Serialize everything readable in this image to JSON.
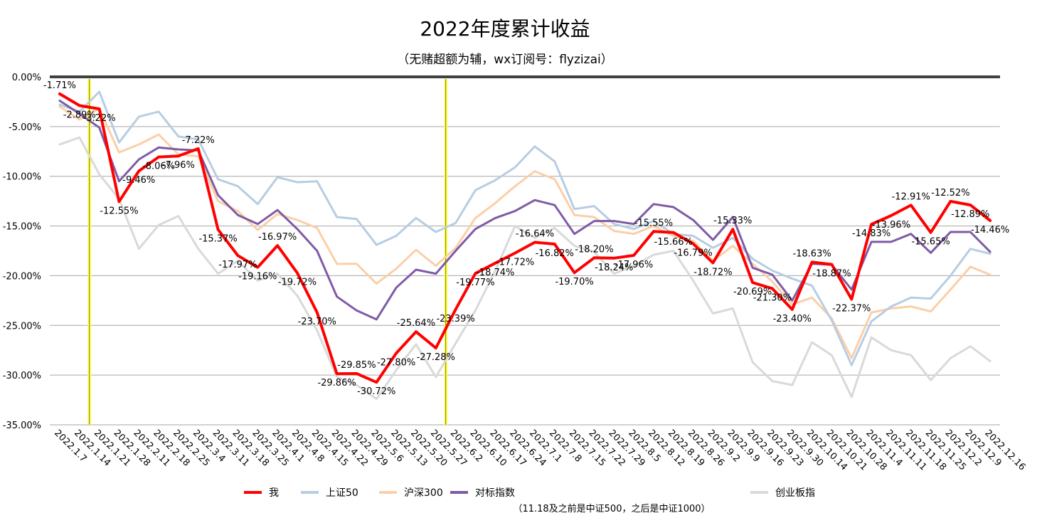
{
  "chart_data": {
    "type": "line",
    "title": "2022年度累计收益",
    "subtitle": "（无赌超额为辅，wx订阅号：flyzizai）",
    "ylim": [
      -35,
      0
    ],
    "yticks": [
      "0.00%",
      "-5.00%",
      "-10.00%",
      "-15.00%",
      "-20.00%",
      "-25.00%",
      "-30.00%",
      "-35.00%"
    ],
    "ytick_values": [
      0,
      -5,
      -10,
      -15,
      -20,
      -25,
      -30,
      -35
    ],
    "categories": [
      "2022.1.7",
      "2022.1.14",
      "2022.1.21",
      "2022.1.28",
      "2022.2.11",
      "2022.2.18",
      "2022.2.25",
      "2022.3.4",
      "2022.3.11",
      "2022.3.18",
      "2022.3.25",
      "2022.4.1",
      "2022.4.8",
      "2022.4.15",
      "2022.4.22",
      "2022.4.29",
      "2022.5.6",
      "2022.5.13",
      "2022.5.20",
      "2022.5.27",
      "2022.6.2",
      "2022.6.10",
      "2022.6.17",
      "2022.6.24",
      "2022.7.1",
      "2022.7.8",
      "2022.7.15",
      "2022.7.22",
      "2022.7.29",
      "2022.8.5",
      "2022.8.12",
      "2022.8.19",
      "2022.8.26",
      "2022.9.2",
      "2022.9.9",
      "2022.9.16",
      "2022.9.23",
      "2022.9.30",
      "2022.10.14",
      "2022.10.21",
      "2022.10.28",
      "2022.11.4",
      "2022.11.11",
      "2022.11.18",
      "2022.11.25",
      "2022.12.2",
      "2022.12.9",
      "2022.12.16"
    ],
    "highlight_lines_after": [
      "2022.1.14",
      "2022.5.27"
    ],
    "highlight_color": "#FFFF66",
    "series": [
      {
        "name": "创业板指",
        "color": "#D9D9D9",
        "width": 3,
        "values": [
          -6.8,
          -6.1,
          -9.8,
          -12.3,
          -17.3,
          -14.9,
          -14.0,
          -17.3,
          -19.8,
          -18.5,
          -20.5,
          -19.8,
          -22.0,
          -25.5,
          -30.2,
          -31.0,
          -32.4,
          -29.5,
          -26.9,
          -30.2,
          -26.8,
          -23.5,
          -19.5,
          -15.0,
          -16.2,
          -15.2,
          -17.0,
          -17.6,
          -19.8,
          -19.0,
          -17.9,
          -17.5,
          -20.5,
          -23.8,
          -23.3,
          -28.7,
          -30.6,
          -31.0,
          -26.7,
          -28.0,
          -32.2,
          -26.2,
          -27.5,
          -28.0,
          -30.5,
          -28.3,
          -27.1,
          -28.6
        ]
      },
      {
        "name": "沪深300",
        "color": "#FBCFA8",
        "width": 3,
        "values": [
          -3.0,
          -4.3,
          -3.2,
          -7.6,
          -6.8,
          -5.8,
          -7.8,
          -8.0,
          -12.5,
          -13.5,
          -15.4,
          -13.8,
          -14.4,
          -15.2,
          -18.8,
          -18.8,
          -20.8,
          -19.3,
          -17.4,
          -19.0,
          -17.2,
          -14.2,
          -12.7,
          -11.0,
          -9.5,
          -10.3,
          -13.9,
          -14.1,
          -15.5,
          -15.8,
          -15.0,
          -16.0,
          -16.5,
          -18.5,
          -17.0,
          -18.8,
          -20.6,
          -22.9,
          -22.2,
          -24.3,
          -28.3,
          -23.7,
          -23.3,
          -23.1,
          -23.6,
          -21.4,
          -19.1,
          -19.9
        ]
      },
      {
        "name": "上证50",
        "color": "#B7CDE3",
        "width": 3,
        "values": [
          -2.8,
          -3.5,
          -1.5,
          -6.6,
          -4.0,
          -3.5,
          -6.0,
          -6.3,
          -10.3,
          -11.0,
          -12.8,
          -10.1,
          -10.6,
          -10.5,
          -14.1,
          -14.3,
          -16.9,
          -16.0,
          -14.2,
          -15.6,
          -14.7,
          -11.4,
          -10.4,
          -9.1,
          -7.0,
          -8.5,
          -13.3,
          -13.0,
          -14.8,
          -15.3,
          -14.5,
          -15.8,
          -16.0,
          -17.2,
          -16.2,
          -18.3,
          -19.5,
          -20.3,
          -21.0,
          -24.5,
          -29.0,
          -24.6,
          -23.1,
          -22.2,
          -22.3,
          -20.0,
          -17.3,
          -17.8
        ]
      },
      {
        "name": "对标指数",
        "color": "#7E5BA6",
        "width": 3,
        "values": [
          -2.4,
          -3.7,
          -5.1,
          -10.5,
          -8.3,
          -7.1,
          -7.3,
          -7.4,
          -11.9,
          -13.9,
          -14.8,
          -13.4,
          -15.3,
          -17.5,
          -22.1,
          -23.5,
          -24.4,
          -21.2,
          -19.4,
          -19.8,
          -17.5,
          -15.3,
          -14.2,
          -13.5,
          -12.4,
          -12.9,
          -15.8,
          -14.5,
          -14.5,
          -14.8,
          -12.8,
          -13.1,
          -14.4,
          -16.4,
          -14.1,
          -19.2,
          -19.9,
          -22.5,
          -18.8,
          -18.9,
          -21.4,
          -16.6,
          -16.6,
          -15.8,
          -17.7,
          -15.6,
          -15.6,
          -17.6
        ]
      },
      {
        "name": "我",
        "color": "#FF0000",
        "width": 4,
        "values": [
          -1.71,
          -2.89,
          -3.22,
          -12.55,
          -9.46,
          -8.06,
          -7.96,
          -7.22,
          -15.37,
          -17.97,
          -19.16,
          -16.97,
          -19.72,
          -23.7,
          -29.86,
          -29.85,
          -30.72,
          -27.8,
          -25.64,
          -27.28,
          -23.39,
          -19.77,
          -18.74,
          -17.72,
          -16.64,
          -16.82,
          -19.7,
          -18.2,
          -18.24,
          -17.96,
          -15.55,
          -15.66,
          -16.79,
          -18.72,
          -15.33,
          -20.69,
          -21.3,
          -23.4,
          -18.63,
          -18.87,
          -22.37,
          -14.83,
          -13.96,
          -12.91,
          -15.65,
          -12.52,
          -12.89,
          -14.46
        ],
        "labels": [
          "-1.71%",
          "-2.89%",
          "-3.22%",
          "-12.55%",
          "-9.46%",
          "-8.06%",
          "-7.96%",
          "-7.22%",
          "-15.37%",
          "-17.97%",
          "-19.16%",
          "-16.97%",
          "-19.72%",
          "-23.70%",
          "-29.86%",
          "-29.85%",
          "-30.72%",
          "-27.80%",
          "-25.64%",
          "-27.28%",
          "-23.39%",
          "-19.77%",
          "-18.74%",
          "-17.72%",
          "-16.64%",
          "-16.82%",
          "-19.70%",
          "-18.20%",
          "-18.24%",
          "-17.96%",
          "-15.55%",
          "-15.66%",
          "-16.79%",
          "-18.72%",
          "-15.33%",
          "-20.69%",
          "-21.30%",
          "-23.40%",
          "-18.63%",
          "-18.87%",
          "-22.37%",
          "-14.83%",
          "-13.96%",
          "-12.91%",
          "-15.65%",
          "-12.52%",
          "-12.89%",
          "-14.46%"
        ]
      }
    ],
    "legend": [
      {
        "name": "我",
        "color": "#FF0000"
      },
      {
        "name": "上证50",
        "color": "#B7CDE3"
      },
      {
        "name": "沪深300",
        "color": "#FBCFA8"
      },
      {
        "name": "对标指数",
        "color": "#7E5BA6"
      },
      {
        "name": "创业板指",
        "color": "#D9D9D9"
      }
    ],
    "legend_note": "（11.18及之前是中证500，之后是中证1000）",
    "legend_position": "bottom",
    "grid": true
  }
}
